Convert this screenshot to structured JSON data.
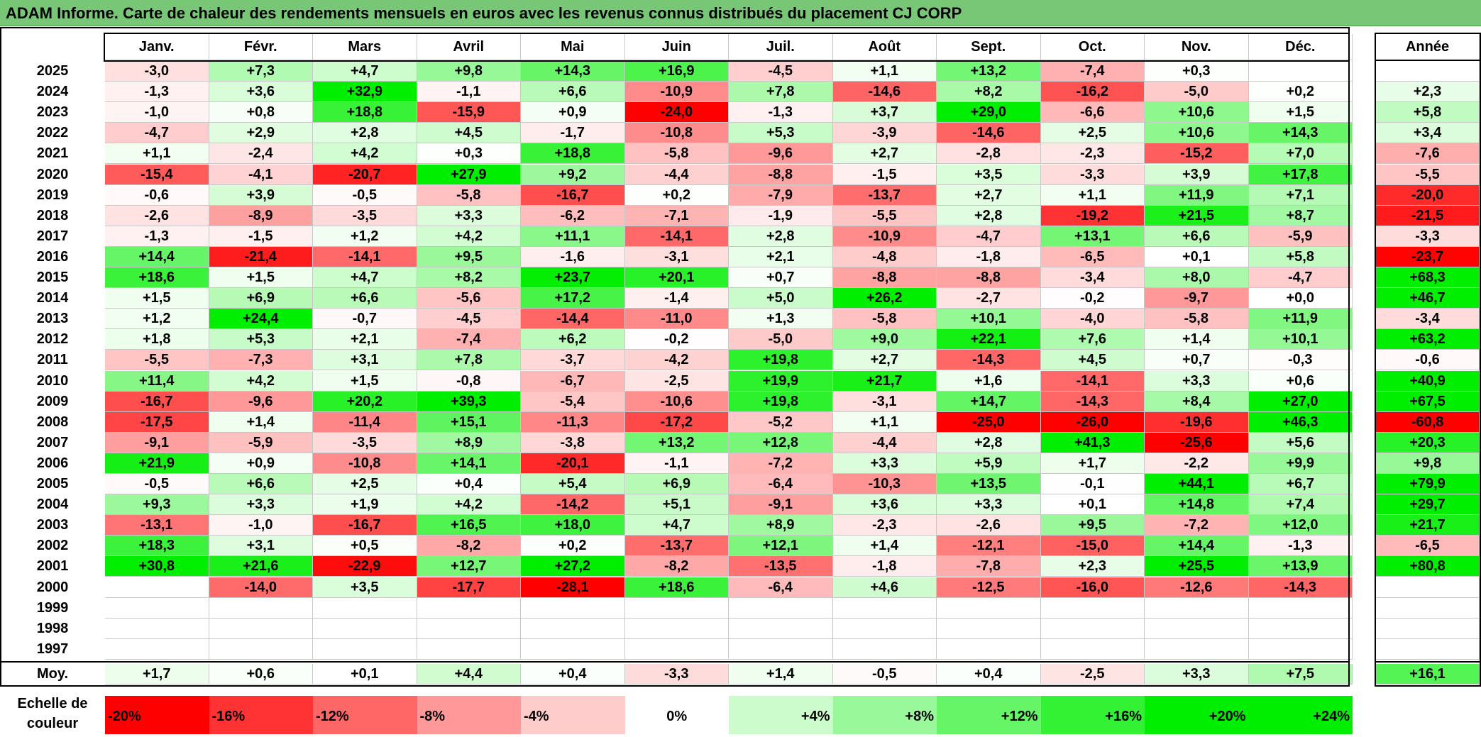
{
  "title": "ADAM Informe. Carte de chaleur des rendements mensuels en euros avec les revenus connus distribués du placement CJ CORP",
  "chart_data": {
    "type": "heatmap",
    "title": "ADAM Informe. Carte de chaleur des rendements mensuels en euros avec les revenus connus distribués du placement CJ CORP",
    "months": [
      "Janv.",
      "Févr.",
      "Mars",
      "Avril",
      "Mai",
      "Juin",
      "Juil.",
      "Août",
      "Sept.",
      "Oct.",
      "Nov.",
      "Déc."
    ],
    "year_header": "Année",
    "rows": [
      {
        "year": "2025",
        "months": [
          "-3,0",
          "+7,3",
          "+4,7",
          "+9,8",
          "+14,3",
          "+16,9",
          "-4,5",
          "+1,1",
          "+13,2",
          "-7,4",
          "+0,3",
          ""
        ],
        "annual": ""
      },
      {
        "year": "2024",
        "months": [
          "-1,3",
          "+3,6",
          "+32,9",
          "-1,1",
          "+6,6",
          "-10,9",
          "+7,8",
          "-14,6",
          "+8,2",
          "-16,2",
          "-5,0",
          "+0,2"
        ],
        "annual": "+2,3"
      },
      {
        "year": "2023",
        "months": [
          "-1,0",
          "+0,8",
          "+18,8",
          "-15,9",
          "+0,9",
          "-24,0",
          "-1,3",
          "+3,7",
          "+29,0",
          "-6,6",
          "+10,6",
          "+1,5"
        ],
        "annual": "+5,8"
      },
      {
        "year": "2022",
        "months": [
          "-4,7",
          "+2,9",
          "+2,8",
          "+4,5",
          "-1,7",
          "-10,8",
          "+5,3",
          "-3,9",
          "-14,6",
          "+2,5",
          "+10,6",
          "+14,3"
        ],
        "annual": "+3,4"
      },
      {
        "year": "2021",
        "months": [
          "+1,1",
          "-2,4",
          "+4,2",
          "+0,3",
          "+18,8",
          "-5,8",
          "-9,6",
          "+2,7",
          "-2,8",
          "-2,3",
          "-15,2",
          "+7,0"
        ],
        "annual": "-7,6"
      },
      {
        "year": "2020",
        "months": [
          "-15,4",
          "-4,1",
          "-20,7",
          "+27,9",
          "+9,2",
          "-4,4",
          "-8,8",
          "-1,5",
          "+3,5",
          "-3,3",
          "+3,9",
          "+17,8"
        ],
        "annual": "-5,5"
      },
      {
        "year": "2019",
        "months": [
          "-0,6",
          "+3,9",
          "-0,5",
          "-5,8",
          "-16,7",
          "+0,2",
          "-7,9",
          "-13,7",
          "+2,7",
          "+1,1",
          "+11,9",
          "+7,1"
        ],
        "annual": "-20,0"
      },
      {
        "year": "2018",
        "months": [
          "-2,6",
          "-8,9",
          "-3,5",
          "+3,3",
          "-6,2",
          "-7,1",
          "-1,9",
          "-5,5",
          "+2,8",
          "-19,2",
          "+21,5",
          "+8,7"
        ],
        "annual": "-21,5"
      },
      {
        "year": "2017",
        "months": [
          "-1,3",
          "-1,5",
          "+1,2",
          "+4,2",
          "+11,1",
          "-14,1",
          "+2,8",
          "-10,9",
          "-4,7",
          "+13,1",
          "+6,6",
          "-5,9"
        ],
        "annual": "-3,3"
      },
      {
        "year": "2016",
        "months": [
          "+14,4",
          "-21,4",
          "-14,1",
          "+9,5",
          "-1,6",
          "-3,1",
          "+2,1",
          "-4,8",
          "-1,8",
          "-6,5",
          "+0,1",
          "+5,8"
        ],
        "annual": "-23,7"
      },
      {
        "year": "2015",
        "months": [
          "+18,6",
          "+1,5",
          "+4,7",
          "+8,2",
          "+23,7",
          "+20,1",
          "+0,7",
          "-8,8",
          "-8,8",
          "-3,4",
          "+8,0",
          "-4,7"
        ],
        "annual": "+68,3"
      },
      {
        "year": "2014",
        "months": [
          "+1,5",
          "+6,9",
          "+6,6",
          "-5,6",
          "+17,2",
          "-1,4",
          "+5,0",
          "+26,2",
          "-2,7",
          "-0,2",
          "-9,7",
          "+0,0"
        ],
        "annual": "+46,7"
      },
      {
        "year": "2013",
        "months": [
          "+1,2",
          "+24,4",
          "-0,7",
          "-4,5",
          "-14,4",
          "-11,0",
          "+1,3",
          "-5,8",
          "+10,1",
          "-4,0",
          "-5,8",
          "+11,9"
        ],
        "annual": "-3,4"
      },
      {
        "year": "2012",
        "months": [
          "+1,8",
          "+5,3",
          "+2,1",
          "-7,4",
          "+6,2",
          "-0,2",
          "-5,0",
          "+9,0",
          "+22,1",
          "+7,6",
          "+1,4",
          "+10,1"
        ],
        "annual": "+63,2"
      },
      {
        "year": "2011",
        "months": [
          "-5,5",
          "-7,3",
          "+3,1",
          "+7,8",
          "-3,7",
          "-4,2",
          "+19,8",
          "+2,7",
          "-14,3",
          "+4,5",
          "+0,7",
          "-0,3"
        ],
        "annual": "-0,6"
      },
      {
        "year": "2010",
        "months": [
          "+11,4",
          "+4,2",
          "+1,5",
          "-0,8",
          "-6,7",
          "-2,5",
          "+19,9",
          "+21,7",
          "+1,6",
          "-14,1",
          "+3,3",
          "+0,6"
        ],
        "annual": "+40,9"
      },
      {
        "year": "2009",
        "months": [
          "-16,7",
          "-9,6",
          "+20,2",
          "+39,3",
          "-5,4",
          "-10,6",
          "+19,8",
          "-3,1",
          "+14,7",
          "-14,3",
          "+8,4",
          "+27,0"
        ],
        "annual": "+67,5"
      },
      {
        "year": "2008",
        "months": [
          "-17,5",
          "+1,4",
          "-11,4",
          "+15,1",
          "-11,3",
          "-17,2",
          "-5,2",
          "+1,1",
          "-25,0",
          "-26,0",
          "-19,6",
          "+46,3"
        ],
        "annual": "-60,8"
      },
      {
        "year": "2007",
        "months": [
          "-9,1",
          "-5,9",
          "-3,5",
          "+8,9",
          "-3,8",
          "+13,2",
          "+12,8",
          "-4,4",
          "+2,8",
          "+41,3",
          "-25,6",
          "+5,6"
        ],
        "annual": "+20,3"
      },
      {
        "year": "2006",
        "months": [
          "+21,9",
          "+0,9",
          "-10,8",
          "+14,1",
          "-20,1",
          "-1,1",
          "-7,2",
          "+3,3",
          "+5,9",
          "+1,7",
          "-2,2",
          "+9,9"
        ],
        "annual": "+9,8"
      },
      {
        "year": "2005",
        "months": [
          "-0,5",
          "+6,6",
          "+2,5",
          "+0,4",
          "+5,4",
          "+6,9",
          "-6,4",
          "-10,3",
          "+13,5",
          "-0,1",
          "+44,1",
          "+6,7"
        ],
        "annual": "+79,9"
      },
      {
        "year": "2004",
        "months": [
          "+9,3",
          "+3,3",
          "+1,9",
          "+4,2",
          "-14,2",
          "+5,1",
          "-9,1",
          "+3,6",
          "+3,3",
          "+0,1",
          "+14,8",
          "+7,4"
        ],
        "annual": "+29,7"
      },
      {
        "year": "2003",
        "months": [
          "-13,1",
          "-1,0",
          "-16,7",
          "+16,5",
          "+18,0",
          "+4,7",
          "+8,9",
          "-2,3",
          "-2,6",
          "+9,5",
          "-7,2",
          "+12,0"
        ],
        "annual": "+21,7"
      },
      {
        "year": "2002",
        "months": [
          "+18,3",
          "+3,1",
          "+0,5",
          "-8,2",
          "+0,2",
          "-13,7",
          "+12,1",
          "+1,4",
          "-12,1",
          "-15,0",
          "+14,4",
          "-1,3"
        ],
        "annual": "-6,5"
      },
      {
        "year": "2001",
        "months": [
          "+30,8",
          "+21,6",
          "-22,9",
          "+12,7",
          "+27,2",
          "-8,2",
          "-13,5",
          "-1,8",
          "-7,8",
          "+2,3",
          "+25,5",
          "+13,9"
        ],
        "annual": "+80,8"
      },
      {
        "year": "2000",
        "months": [
          "",
          "-14,0",
          "+3,5",
          "-17,7",
          "-28,1",
          "+18,6",
          "-6,4",
          "+4,6",
          "-12,5",
          "-16,0",
          "-12,6",
          "-14,3"
        ],
        "annual": ""
      },
      {
        "year": "1999",
        "months": [
          "",
          "",
          "",
          "",
          "",
          "",
          "",
          "",
          "",
          "",
          "",
          ""
        ],
        "annual": ""
      },
      {
        "year": "1998",
        "months": [
          "",
          "",
          "",
          "",
          "",
          "",
          "",
          "",
          "",
          "",
          "",
          ""
        ],
        "annual": ""
      },
      {
        "year": "1997",
        "months": [
          "",
          "",
          "",
          "",
          "",
          "",
          "",
          "",
          "",
          "",
          "",
          ""
        ],
        "annual": ""
      }
    ],
    "average": {
      "label": "Moy.",
      "months": [
        "+1,7",
        "+0,6",
        "+0,1",
        "+4,4",
        "+0,4",
        "-3,3",
        "+1,4",
        "-0,5",
        "+0,4",
        "-2,5",
        "+3,3",
        "+7,5"
      ],
      "annual": "+16,1"
    },
    "color_scale": {
      "label": "Echelle de couleur",
      "steps": [
        "-20%",
        "-16%",
        "-12%",
        "-8%",
        "-4%",
        "0%",
        "+4%",
        "+8%",
        "+12%",
        "+16%",
        "+20%",
        "+24%"
      ]
    },
    "colors": {
      "negative_max": "#ff0000",
      "neutral": "#ffffff",
      "positive_max": "#00ee00",
      "title_bar": "#77c777"
    }
  }
}
